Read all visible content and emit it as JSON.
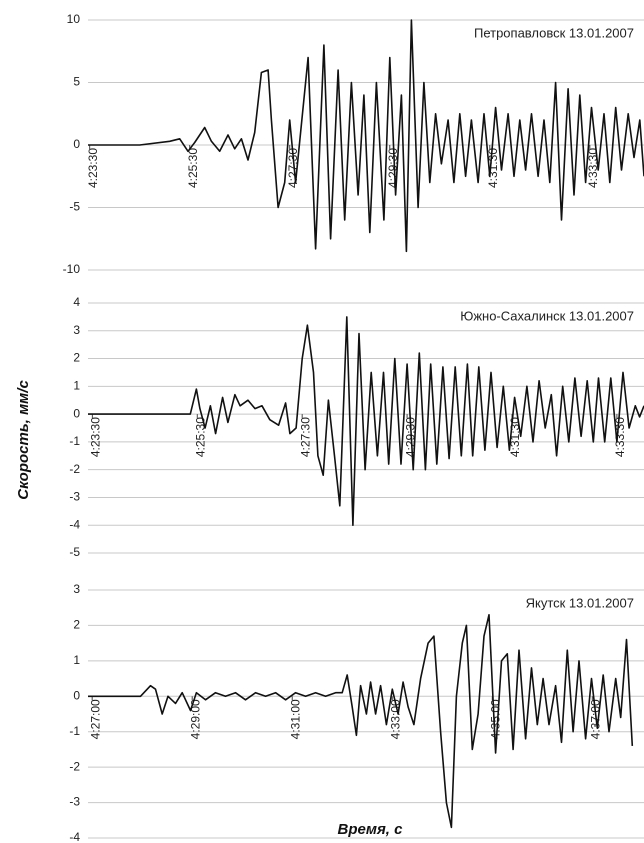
{
  "axis_labels": {
    "y": "Скорость, мм/с",
    "x": "Время, с"
  },
  "chart_data": [
    {
      "type": "line",
      "annotation": "Петропавловск  13.01.2007",
      "color": "#111111",
      "grid": true,
      "xlim": [
        15808,
        16475
      ],
      "ylim": [
        -10,
        10
      ],
      "yticks": [
        -10,
        -5,
        0,
        5,
        10
      ],
      "xticks": [
        {
          "value": 15810,
          "label": "4:23:30"
        },
        {
          "value": 15930,
          "label": "4:25:30"
        },
        {
          "value": 16050,
          "label": "4:27:30"
        },
        {
          "value": 16170,
          "label": "4:29:30"
        },
        {
          "value": 16290,
          "label": "4:31:30"
        },
        {
          "value": 16410,
          "label": "4:33:30"
        }
      ],
      "x": [
        15808,
        15870,
        15906,
        15918,
        15928,
        15936,
        15948,
        15956,
        15966,
        15976,
        15984,
        15992,
        16000,
        16008,
        16016,
        16024,
        16028,
        16036,
        16044,
        16050,
        16057,
        16072,
        16081,
        16091,
        16099,
        16108,
        16116,
        16124,
        16132,
        16139,
        16146,
        16154,
        16163,
        16170,
        16177,
        16184,
        16190,
        16196,
        16204,
        16211,
        16218,
        16225,
        16232,
        16240,
        16247,
        16254,
        16261,
        16268,
        16276,
        16283,
        16290,
        16297,
        16304,
        16312,
        16319,
        16326,
        16333,
        16340,
        16348,
        16355,
        16362,
        16369,
        16376,
        16384,
        16391,
        16398,
        16405,
        16412,
        16420,
        16427,
        16434,
        16441,
        16448,
        16456,
        16463,
        16470,
        16475
      ],
      "values": [
        0,
        0,
        0.3,
        0.5,
        -0.5,
        0.2,
        1.4,
        0.3,
        -0.5,
        0.8,
        -0.3,
        0.5,
        -1.2,
        1,
        5.8,
        6,
        2,
        -5,
        -3,
        2,
        -3,
        7,
        -8.3,
        8,
        -7.5,
        6,
        -6,
        5,
        -4,
        4,
        -7,
        5,
        -6,
        7,
        -4,
        4,
        -8.5,
        10,
        -5,
        5,
        -3,
        2.5,
        -1.5,
        2,
        -3,
        2.5,
        -2.5,
        2,
        -3,
        2.5,
        -2.5,
        3,
        -2,
        2.5,
        -2.5,
        2,
        -2,
        2.5,
        -2.5,
        2,
        -3,
        5,
        -6,
        4.5,
        -4,
        4,
        -3,
        3,
        -2,
        2.5,
        -3,
        3,
        -2,
        2.5,
        -1,
        2,
        -2.5
      ]
    },
    {
      "type": "line",
      "annotation": "Южно-Сахалинск 13.01.2007",
      "color": "#111111",
      "grid": true,
      "xlim": [
        15805,
        16441
      ],
      "ylim": [
        -5,
        4
      ],
      "yticks": [
        -5,
        -4,
        -3,
        -2,
        -1,
        0,
        1,
        2,
        3,
        4
      ],
      "xticks": [
        {
          "value": 15810,
          "label": "4:23:30"
        },
        {
          "value": 15930,
          "label": "4:25:30"
        },
        {
          "value": 16050,
          "label": "4:27:30"
        },
        {
          "value": 16170,
          "label": "4:29:30"
        },
        {
          "value": 16290,
          "label": "4:31:30"
        },
        {
          "value": 16410,
          "label": "4:33:30"
        }
      ],
      "x": [
        15805,
        15922,
        15929,
        15933,
        15939,
        15945,
        15951,
        15959,
        15965,
        15973,
        15979,
        15988,
        15996,
        16004,
        16013,
        16023,
        16031,
        16036,
        16043,
        16050,
        16056,
        16063,
        16068,
        16074,
        16080,
        16087,
        16093,
        16101,
        16108,
        16115,
        16122,
        16129,
        16136,
        16143,
        16149,
        16156,
        16163,
        16170,
        16177,
        16184,
        16191,
        16197,
        16204,
        16211,
        16218,
        16225,
        16232,
        16239,
        16245,
        16252,
        16259,
        16266,
        16273,
        16280,
        16287,
        16293,
        16300,
        16307,
        16314,
        16321,
        16328,
        16335,
        16341,
        16348,
        16355,
        16362,
        16369,
        16376,
        16383,
        16389,
        16396,
        16403,
        16410,
        16417,
        16424,
        16431,
        16436,
        16441
      ],
      "values": [
        0,
        0,
        0.9,
        0.2,
        -0.5,
        0.3,
        -0.7,
        0.6,
        -0.3,
        0.7,
        0.3,
        0.5,
        0.2,
        0.3,
        -0.2,
        -0.4,
        0.4,
        -0.7,
        -0.5,
        2,
        3.2,
        1.5,
        -1.5,
        -2.2,
        0.5,
        -1.5,
        -3.3,
        3.5,
        -4,
        2.9,
        -2,
        1.5,
        -1.5,
        1.5,
        -1.8,
        2,
        -1.8,
        1.8,
        -2,
        2.2,
        -2,
        1.8,
        -1.8,
        1.7,
        -1.6,
        1.7,
        -1.5,
        1.8,
        -1.5,
        1.7,
        -1.3,
        1.5,
        -1.2,
        1,
        -1.3,
        0.6,
        -0.8,
        1,
        -1,
        1.2,
        -0.5,
        0.7,
        -1.5,
        1,
        -1,
        1.3,
        -0.8,
        1.2,
        -1,
        1.3,
        -1,
        1.3,
        -1,
        1.5,
        -0.5,
        0.3,
        -0.1,
        0.3
      ]
    },
    {
      "type": "line",
      "annotation": "Якутск  13.01.2007",
      "color": "#111111",
      "grid": true,
      "xlim": [
        16015,
        16682
      ],
      "ylim": [
        -4,
        3
      ],
      "yticks": [
        -4,
        -3,
        -2,
        -1,
        0,
        1,
        2,
        3
      ],
      "xticks": [
        {
          "value": 16020,
          "label": "4:27:00"
        },
        {
          "value": 16140,
          "label": "4:29:00"
        },
        {
          "value": 16260,
          "label": "4:31:00"
        },
        {
          "value": 16380,
          "label": "4:33:00"
        },
        {
          "value": 16500,
          "label": "4:35:00"
        },
        {
          "value": 16620,
          "label": "4:37:00"
        }
      ],
      "x": [
        16015,
        16078,
        16090,
        16096,
        16104,
        16111,
        16120,
        16128,
        16138,
        16145,
        16156,
        16168,
        16180,
        16192,
        16204,
        16216,
        16228,
        16240,
        16252,
        16264,
        16276,
        16288,
        16300,
        16312,
        16320,
        16326,
        16332,
        16337,
        16342,
        16349,
        16354,
        16360,
        16366,
        16373,
        16380,
        16387,
        16393,
        16399,
        16406,
        16414,
        16423,
        16430,
        16438,
        16445,
        16451,
        16457,
        16464,
        16469,
        16476,
        16483,
        16490,
        16496,
        16504,
        16511,
        16518,
        16525,
        16532,
        16540,
        16547,
        16554,
        16561,
        16568,
        16576,
        16583,
        16590,
        16597,
        16604,
        16612,
        16619,
        16626,
        16633,
        16640,
        16648,
        16654,
        16661,
        16668
      ],
      "values": [
        0,
        0,
        0.3,
        0.2,
        -0.5,
        0,
        -0.2,
        0.1,
        -0.4,
        0.1,
        -0.1,
        0.1,
        0,
        0.1,
        -0.1,
        0.1,
        0,
        0.1,
        -0.1,
        0.1,
        0,
        0.1,
        0,
        0.1,
        0.1,
        0.6,
        -0.3,
        -1.1,
        0.3,
        -0.5,
        0.4,
        -0.5,
        0.3,
        -0.8,
        0.2,
        -0.5,
        0.4,
        -0.3,
        -0.8,
        0.5,
        1.5,
        1.7,
        -1,
        -3,
        -3.7,
        0,
        1.5,
        2,
        -1.5,
        -0.5,
        1.7,
        2.3,
        -1.6,
        1,
        1.2,
        -1.5,
        1.3,
        -1.2,
        0.8,
        -0.8,
        0.5,
        -0.8,
        0.3,
        -1.3,
        1.3,
        -1,
        1,
        -1.2,
        0.5,
        -0.9,
        0.6,
        -1,
        0.5,
        -0.6,
        1.6,
        -1.4
      ]
    }
  ]
}
